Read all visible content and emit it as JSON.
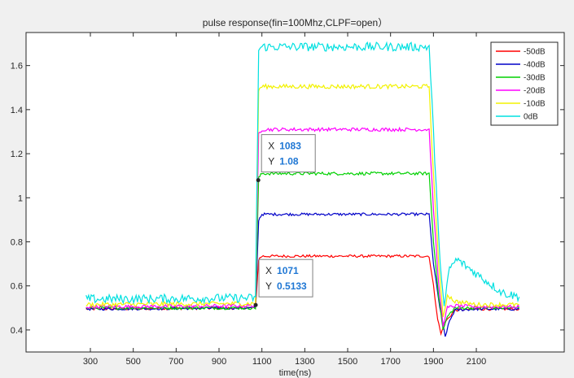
{
  "chart_data": {
    "type": "line",
    "title": "pulse response(fin=100Mhz,CLPF=open）",
    "xlabel": "time(ns)",
    "ylabel": "",
    "xlim": [
      0,
      2510
    ],
    "ylim": [
      0.3,
      1.75
    ],
    "xticks": [
      300,
      500,
      700,
      900,
      1100,
      1300,
      1500,
      1700,
      1900,
      2100
    ],
    "xtick_labels": [
      "300",
      "500",
      "700",
      "900",
      "1100",
      "1300",
      "1500",
      "1700",
      "1900",
      "2100"
    ],
    "yticks": [
      0.4,
      0.6,
      0.8,
      1.0,
      1.2,
      1.4,
      1.6
    ],
    "ytick_labels": [
      "0.4",
      "0.6",
      "0.8",
      "1",
      "1.2",
      "1.4",
      "1.6"
    ],
    "grid": false,
    "legend_position": "top-right",
    "series": [
      {
        "name": "-50dB",
        "color": "#ff0000",
        "baseline": 0.495,
        "high": 0.735,
        "dip": 0.38,
        "noise": 0.006,
        "x": [
          280,
          1070,
          1085,
          1100,
          1880,
          1900,
          1920,
          1935,
          1950,
          2000,
          2100,
          2300
        ],
        "y": [
          0.495,
          0.5,
          0.72,
          0.735,
          0.735,
          0.6,
          0.45,
          0.38,
          0.43,
          0.49,
          0.495,
          0.495
        ]
      },
      {
        "name": "-40dB",
        "color": "#0000c8",
        "baseline": 0.495,
        "high": 0.925,
        "dip": 0.37,
        "noise": 0.006,
        "x": [
          280,
          1070,
          1085,
          1100,
          1880,
          1900,
          1930,
          1955,
          1975,
          2000,
          2100,
          2300
        ],
        "y": [
          0.495,
          0.5,
          0.9,
          0.925,
          0.925,
          0.7,
          0.5,
          0.37,
          0.44,
          0.49,
          0.495,
          0.495
        ]
      },
      {
        "name": "-30dB",
        "color": "#00d000",
        "baseline": 0.5,
        "high": 1.11,
        "dip": 0.4,
        "noise": 0.007,
        "x": [
          280,
          1070,
          1085,
          1100,
          1880,
          1900,
          1925,
          1945,
          1965,
          2000,
          2100,
          2300
        ],
        "y": [
          0.5,
          0.5,
          1.09,
          1.11,
          1.11,
          0.8,
          0.55,
          0.4,
          0.46,
          0.5,
          0.5,
          0.5
        ]
      },
      {
        "name": "-20dB",
        "color": "#ff00ff",
        "baseline": 0.505,
        "high": 1.31,
        "dip": 0.42,
        "noise": 0.008,
        "x": [
          280,
          1070,
          1085,
          1100,
          1880,
          1900,
          1925,
          1945,
          1965,
          2000,
          2100,
          2300
        ],
        "y": [
          0.505,
          0.51,
          1.29,
          1.31,
          1.31,
          0.95,
          0.6,
          0.42,
          0.5,
          0.51,
          0.505,
          0.505
        ]
      },
      {
        "name": "-10dB",
        "color": "#f2f200",
        "baseline": 0.515,
        "high": 1.505,
        "dip": 0.45,
        "noise": 0.01,
        "x": [
          280,
          1070,
          1085,
          1100,
          1880,
          1900,
          1925,
          1945,
          1965,
          2000,
          2100,
          2300
        ],
        "y": [
          0.515,
          0.52,
          1.49,
          1.505,
          1.505,
          1.1,
          0.7,
          0.45,
          0.56,
          0.53,
          0.515,
          0.515
        ]
      },
      {
        "name": "0dB",
        "color": "#00e0e0",
        "baseline": 0.54,
        "high": 1.685,
        "dip": 0.5,
        "noise": 0.02,
        "x": [
          280,
          1070,
          1085,
          1100,
          1880,
          1900,
          1925,
          1950,
          1975,
          2010,
          2080,
          2150,
          2220,
          2300
        ],
        "y": [
          0.54,
          0.545,
          1.67,
          1.685,
          1.685,
          1.3,
          0.8,
          0.5,
          0.68,
          0.72,
          0.67,
          0.62,
          0.57,
          0.55
        ]
      }
    ],
    "datatips": [
      {
        "x_label": "X",
        "x_value": "1083",
        "y_label": "Y",
        "y_value": "1.08",
        "x": 1083,
        "y": 1.08
      },
      {
        "x_label": "X",
        "x_value": "1071",
        "y_label": "Y",
        "y_value": "0.5133",
        "x": 1071,
        "y": 0.5133
      }
    ]
  }
}
